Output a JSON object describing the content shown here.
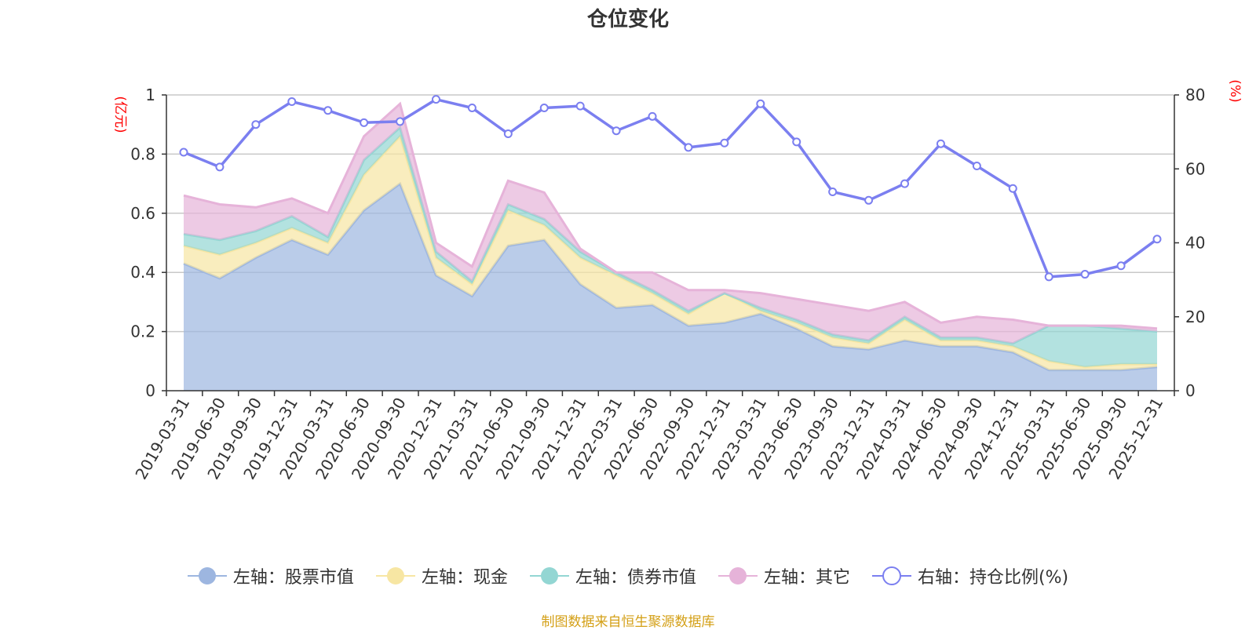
{
  "title": "仓位变化",
  "source_note": "制图数据来自恒生聚源数据库",
  "colors": {
    "stock": "#9db6e0",
    "cash": "#f7e6a3",
    "bond": "#93d6d3",
    "other": "#e6b3d9",
    "ratio": "#7b7ff0",
    "unit": "#ff0000"
  },
  "chart_data": {
    "type": "area",
    "title": "仓位变化",
    "left_axis_unit": "(亿元)",
    "right_axis_unit": "(%)",
    "left_ylim": [
      0,
      1
    ],
    "left_ticks": [
      "0",
      "0.2",
      "0.4",
      "0.6",
      "0.8",
      "1"
    ],
    "right_ylim": [
      0,
      80
    ],
    "right_ticks": [
      "0",
      "20",
      "40",
      "60",
      "80"
    ],
    "categories": [
      "2019-03-31",
      "2019-06-30",
      "2019-09-30",
      "2019-12-31",
      "2020-03-31",
      "2020-06-30",
      "2020-09-30",
      "2020-12-31",
      "2021-03-31",
      "2021-06-30",
      "2021-09-30",
      "2021-12-31",
      "2022-03-31",
      "2022-06-30",
      "2022-09-30",
      "2022-12-31",
      "2023-03-31",
      "2023-06-30",
      "2023-09-30",
      "2023-12-31",
      "2024-03-31",
      "2024-06-30",
      "2024-09-30",
      "2024-12-31",
      "2025-03-31",
      "2025-06-30",
      "2025-09-30",
      "2025-12-31"
    ],
    "stacked_series": [
      {
        "key": "stock",
        "name": "左轴：股票市值",
        "values": [
          0.43,
          0.38,
          0.45,
          0.51,
          0.46,
          0.61,
          0.7,
          0.39,
          0.32,
          0.49,
          0.51,
          0.36,
          0.28,
          0.29,
          0.22,
          0.23,
          0.26,
          0.21,
          0.15,
          0.14,
          0.17,
          0.15,
          0.15,
          0.13,
          0.07,
          0.07,
          0.07,
          0.08
        ]
      },
      {
        "key": "cash",
        "name": "左轴：现金",
        "values": [
          0.06,
          0.08,
          0.05,
          0.04,
          0.04,
          0.12,
          0.16,
          0.06,
          0.04,
          0.12,
          0.05,
          0.09,
          0.11,
          0.04,
          0.04,
          0.1,
          0.01,
          0.02,
          0.03,
          0.02,
          0.07,
          0.02,
          0.02,
          0.02,
          0.03,
          0.01,
          0.02,
          0.01
        ]
      },
      {
        "key": "bond",
        "name": "左轴：债券市值",
        "values": [
          0.04,
          0.05,
          0.04,
          0.04,
          0.02,
          0.05,
          0.03,
          0.02,
          0.01,
          0.02,
          0.02,
          0.02,
          0.01,
          0.01,
          0.01,
          0.0,
          0.01,
          0.01,
          0.01,
          0.01,
          0.01,
          0.01,
          0.01,
          0.01,
          0.12,
          0.14,
          0.12,
          0.11
        ]
      },
      {
        "key": "other",
        "name": "左轴：其它",
        "values": [
          0.13,
          0.12,
          0.08,
          0.06,
          0.08,
          0.08,
          0.08,
          0.03,
          0.05,
          0.08,
          0.09,
          0.01,
          0.0,
          0.06,
          0.07,
          0.01,
          0.05,
          0.07,
          0.1,
          0.1,
          0.05,
          0.05,
          0.07,
          0.08,
          0.0,
          0.0,
          0.01,
          0.01
        ]
      }
    ],
    "line_series": {
      "key": "ratio",
      "name": "右轴：持仓比例(%)",
      "axis": "right",
      "values": [
        64.5,
        60.5,
        72,
        78.2,
        75.8,
        72.5,
        72.8,
        78.8,
        76.5,
        69.5,
        76.5,
        77,
        70.3,
        74.2,
        65.8,
        67,
        77.6,
        67.3,
        53.8,
        51.5,
        56,
        66.8,
        60.8,
        54.7,
        30.8,
        31.5,
        33.8,
        41
      ]
    },
    "legend_position": "bottom-center"
  }
}
